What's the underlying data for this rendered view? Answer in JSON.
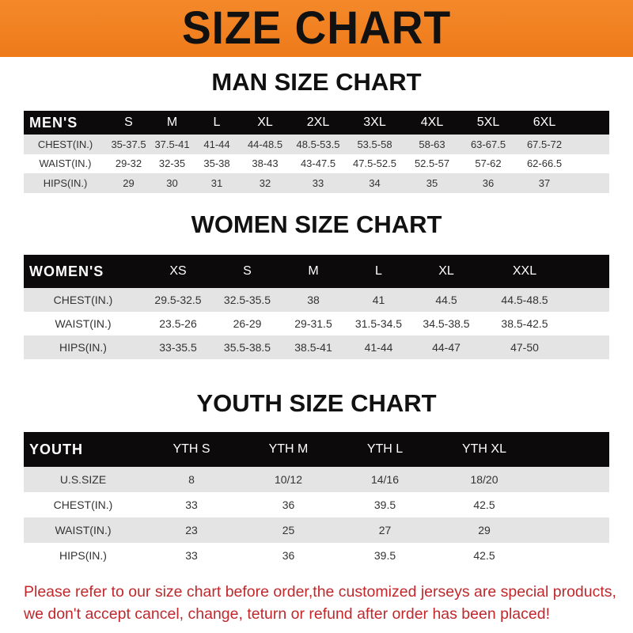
{
  "banner": "SIZE CHART",
  "colors": {
    "banner": "#f07f1f",
    "header_row": "#0c0a0a",
    "stripe": "#e4e4e4",
    "note": "#c0282c"
  },
  "men": {
    "title": "MAN SIZE CHART",
    "header": [
      "MEN'S",
      "S",
      "M",
      "L",
      "XL",
      "2XL",
      "3XL",
      "4XL",
      "5XL",
      "6XL"
    ],
    "rows": [
      [
        "CHEST(IN.)",
        "35-37.5",
        "37.5-41",
        "41-44",
        "44-48.5",
        "48.5-53.5",
        "53.5-58",
        "58-63",
        "63-67.5",
        "67.5-72"
      ],
      [
        "WAIST(IN.)",
        "29-32",
        "32-35",
        "35-38",
        "38-43",
        "43-47.5",
        "47.5-52.5",
        "52.5-57",
        "57-62",
        "62-66.5"
      ],
      [
        "HIPS(IN.)",
        "29",
        "30",
        "31",
        "32",
        "33",
        "34",
        "35",
        "36",
        "37"
      ]
    ]
  },
  "women": {
    "title": "WOMEN SIZE CHART",
    "header": [
      "WOMEN'S",
      "XS",
      "S",
      "M",
      "L",
      "XL",
      "XXL"
    ],
    "rows": [
      [
        "CHEST(IN.)",
        "29.5-32.5",
        "32.5-35.5",
        "38",
        "41",
        "44.5",
        "44.5-48.5"
      ],
      [
        "WAIST(IN.)",
        "23.5-26",
        "26-29",
        "29-31.5",
        "31.5-34.5",
        "34.5-38.5",
        "38.5-42.5"
      ],
      [
        "HIPS(IN.)",
        "33-35.5",
        "35.5-38.5",
        "38.5-41",
        "41-44",
        "44-47",
        "47-50"
      ]
    ]
  },
  "youth": {
    "title": "YOUTH SIZE CHART",
    "header": [
      "YOUTH",
      "YTH S",
      "YTH M",
      "YTH L",
      "YTH XL"
    ],
    "rows": [
      [
        "U.S.SIZE",
        "8",
        "10/12",
        "14/16",
        "18/20"
      ],
      [
        "CHEST(IN.)",
        "33",
        "36",
        "39.5",
        "42.5"
      ],
      [
        "WAIST(IN.)",
        "23",
        "25",
        "27",
        "29"
      ],
      [
        "HIPS(IN.)",
        "33",
        "36",
        "39.5",
        "42.5"
      ]
    ]
  },
  "note": [
    "Please refer to our size chart before order,the customized jerseys are special products,",
    "we don't accept cancel, change, teturn or refund after order has been placed!"
  ]
}
